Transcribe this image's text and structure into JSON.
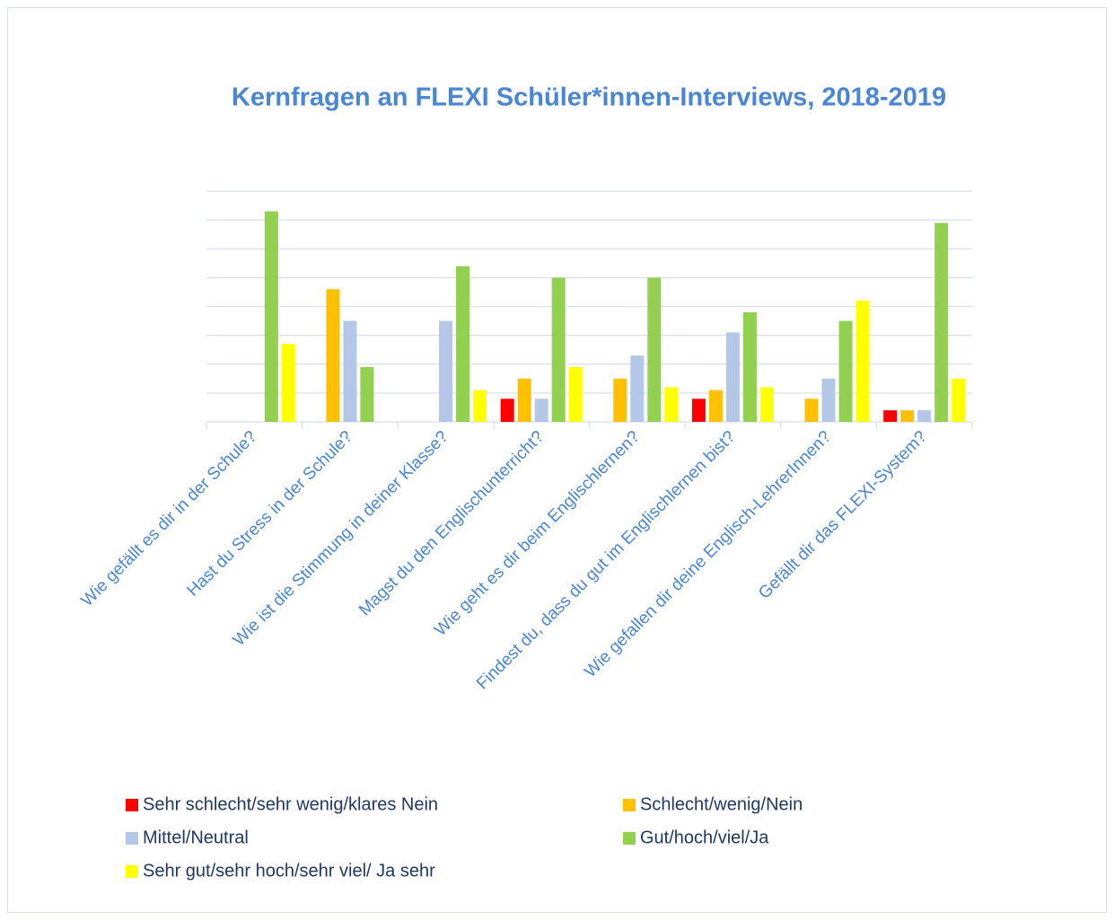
{
  "chart_data": {
    "type": "bar",
    "title": "Kernfragen an FLEXI Schüler*innen-Interviews, 2018-2019",
    "categories": [
      "Wie gefällt es dir in der Schule?",
      "Hast du Stress in der Schule?",
      "Wie ist die Stimmung in deiner Klasse?",
      "Magst du den Englischunterricht?",
      "Wie geht es dir beim Englischlernen?",
      "Findest du, dass du gut im Englischlernen bist?",
      "Wie gefallen dir deine Englisch-LehrerInnen?",
      "Gefällt dir das FLEXI-System?"
    ],
    "series": [
      {
        "name": "Sehr schlecht/sehr wenig/klares Nein",
        "color": "#ff0000",
        "values": [
          0,
          0,
          0,
          0.8,
          0,
          0.8,
          0,
          0.4
        ]
      },
      {
        "name": "Schlecht/wenig/Nein",
        "color": "#ffc000",
        "values": [
          0,
          4.6,
          0,
          1.5,
          1.5,
          1.1,
          0.8,
          0.4
        ]
      },
      {
        "name": "Mittel/Neutral",
        "color": "#b4c7e7",
        "values": [
          0,
          3.5,
          3.5,
          0.8,
          2.3,
          3.1,
          1.5,
          0.4
        ]
      },
      {
        "name": "Gut/hoch/viel/Ja",
        "color": "#92d050",
        "values": [
          7.3,
          1.9,
          5.4,
          5.0,
          5.0,
          3.8,
          3.5,
          6.9
        ]
      },
      {
        "name": "Sehr gut/sehr hoch/sehr viel/ Ja sehr",
        "color": "#ffff00",
        "values": [
          2.7,
          0,
          1.1,
          1.9,
          1.2,
          1.2,
          4.2,
          1.5
        ]
      }
    ],
    "ylim": [
      0,
      8
    ],
    "yticks": [
      0,
      1,
      2,
      3,
      4,
      5,
      6,
      7,
      8
    ],
    "grid": true
  }
}
